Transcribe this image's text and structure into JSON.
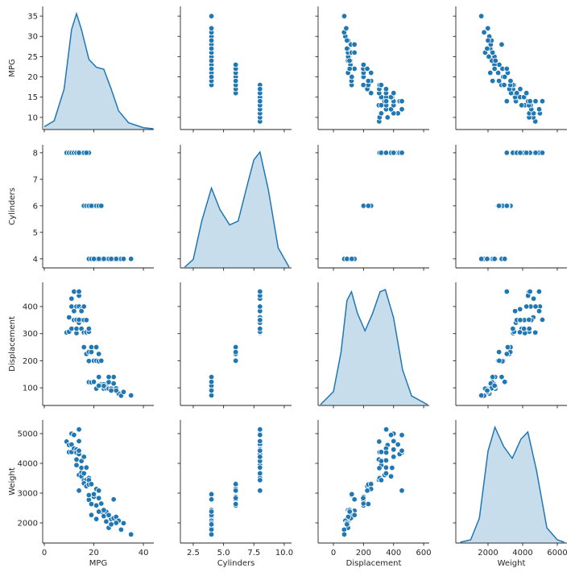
{
  "chart_data": {
    "type": "pairplot",
    "columns": [
      {
        "name": "MPG",
        "values": [
          9,
          10,
          10,
          11,
          11,
          11,
          12,
          12,
          12,
          13,
          13,
          13,
          13,
          13,
          14,
          14,
          14,
          14,
          14,
          15,
          15,
          15,
          15,
          16,
          16,
          17,
          17,
          18,
          18,
          14,
          16,
          17,
          14,
          16,
          17,
          18,
          18,
          19,
          20,
          21,
          21,
          22,
          22,
          23,
          19,
          18,
          19,
          21,
          22,
          23,
          24,
          24,
          25,
          25,
          26,
          26,
          27,
          28,
          28,
          29,
          30,
          31,
          32,
          35,
          26,
          24,
          22,
          29,
          27,
          20
        ],
        "xlim": [
          -0.65,
          44.2
        ],
        "ylim": [
          7.0,
          37.4
        ],
        "xticks": [
          0,
          20,
          40
        ],
        "yticks": [
          10,
          15,
          20,
          25,
          30,
          35
        ],
        "kde": {
          "x": [
            0,
            4,
            8,
            11,
            13,
            15,
            18,
            21,
            24,
            27,
            30,
            34,
            40,
            44
          ],
          "density": [
            0.001,
            0.004,
            0.02,
            0.05,
            0.058,
            0.05,
            0.035,
            0.031,
            0.03,
            0.02,
            0.009,
            0.003,
            0.0005,
            0
          ]
        }
      },
      {
        "name": "Cylinders",
        "values": [
          8,
          8,
          8,
          8,
          8,
          8,
          8,
          8,
          8,
          8,
          8,
          8,
          8,
          8,
          8,
          8,
          8,
          8,
          8,
          8,
          8,
          8,
          8,
          8,
          8,
          8,
          8,
          8,
          8,
          8,
          8,
          8,
          8,
          6,
          6,
          6,
          6,
          6,
          6,
          6,
          6,
          6,
          6,
          6,
          6,
          4,
          4,
          4,
          4,
          4,
          4,
          4,
          4,
          4,
          4,
          4,
          4,
          4,
          4,
          4,
          4,
          4,
          4,
          4,
          4,
          4,
          4,
          4,
          4,
          4
        ],
        "xlim": [
          1.44,
          10.6
        ],
        "ylim": [
          3.66,
          8.3
        ],
        "xticks": [
          2.5,
          {
            "value": 5,
            "label": "5.0"
          },
          7.5,
          {
            "value": 10,
            "label": "10.0"
          }
        ],
        "yticks": [
          4,
          5,
          6,
          7,
          8
        ],
        "kde": {
          "x": [
            1.8,
            2.5,
            3.2,
            4,
            4.7,
            5.5,
            6.2,
            7,
            7.5,
            8,
            8.7,
            9.5,
            10.4
          ],
          "density": [
            0,
            0.02,
            0.12,
            0.206,
            0.15,
            0.11,
            0.12,
            0.22,
            0.28,
            0.3,
            0.2,
            0.05,
            0
          ]
        }
      },
      {
        "name": "Displacement",
        "values": [
          304,
          360,
          307,
          318,
          429,
          400,
          455,
          350,
          383,
          400,
          350,
          302,
          318,
          351,
          454,
          440,
          455,
          400,
          340,
          350,
          390,
          383,
          318,
          400,
          304,
          302,
          305,
          307,
          318,
          351,
          350,
          350,
          455,
          250,
          225,
          199,
          232,
          250,
          200,
          200,
          250,
          198,
          225,
          200,
          232,
          121,
          120,
          97,
          140,
          113,
          97,
          113,
          104,
          98,
          97,
          121,
          97,
          116,
          140,
          98,
          79,
          71,
          85,
          72,
          140,
          107,
          108,
          90,
          90,
          122
        ],
        "xlim": [
          -102,
          637
        ],
        "ylim": [
          35,
          489
        ],
        "xticks": [
          0,
          200,
          400,
          600
        ],
        "yticks": [
          100,
          200,
          300,
          400
        ],
        "kde": {
          "x": [
            -86,
            0,
            50,
            90,
            120,
            160,
            210,
            260,
            310,
            345,
            400,
            460,
            520,
            626
          ],
          "density": [
            0,
            0.0003,
            0.0012,
            0.0024,
            0.0026,
            0.0021,
            0.0017,
            0.0021,
            0.0026,
            0.00265,
            0.002,
            0.0008,
            0.0002,
            0
          ]
        }
      },
      {
        "name": "Weight",
        "values": [
          4732,
          4615,
          4376,
          4382,
          4633,
          4997,
          4951,
          4499,
          4955,
          4464,
          4100,
          4129,
          3940,
          4363,
          4354,
          4312,
          4425,
          4746,
          3609,
          3693,
          3850,
          3563,
          4077,
          4220,
          3433,
          3449,
          3840,
          3504,
          3436,
          5140,
          3664,
          3860,
          3086,
          3329,
          3233,
          2774,
          3288,
          3302,
          2875,
          2587,
          3139,
          2833,
          3085,
          2648,
          2634,
          2933,
          2265,
          2130,
          2408,
          2372,
          2430,
          2228,
          2375,
          2046,
          1835,
          2234,
          2130,
          2158,
          2790,
          2200,
          2074,
          1773,
          1990,
          1613,
          2264,
          2430,
          2379,
          2000,
          1950,
          2965
        ],
        "xlim": [
          140,
          6559
        ],
        "ylim": [
          1324,
          5459
        ],
        "xticks": [
          2000,
          4000,
          6000
        ],
        "yticks": [
          2000,
          3000,
          4000,
          5000
        ],
        "kde": {
          "x": [
            400,
            1000,
            1500,
            2000,
            2400,
            2900,
            3400,
            3900,
            4300,
            4800,
            5400,
            6000,
            6400
          ],
          "density": [
            0,
            1e-05,
            0.0001,
            0.00038,
            0.00048,
            0.0004,
            0.00035,
            0.00043,
            0.00046,
            0.0003,
            6e-05,
            1e-05,
            0
          ]
        }
      }
    ],
    "color": "#1f77b4"
  }
}
